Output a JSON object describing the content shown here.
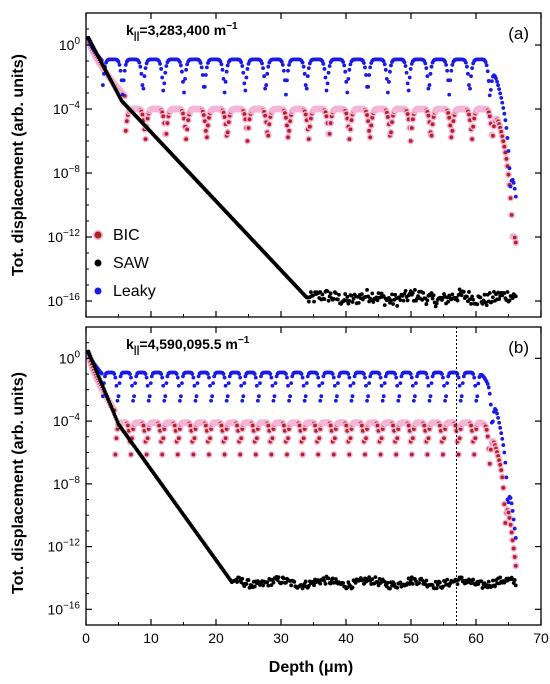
{
  "chart_data": [
    {
      "type": "scatter",
      "panel_label": "(a)",
      "annotation": {
        "main": "k",
        "sub": "||",
        "rest": "=3,283,400 m",
        "sup": "−1"
      },
      "xlim": [
        0,
        70
      ],
      "ylim_log10": [
        -17,
        2
      ],
      "y_scale": "log",
      "ytick_labels": [
        "10^0",
        "10^-4",
        "10^-8",
        "10^-12",
        "10^-16"
      ],
      "ytick_exponents": [
        0,
        -4,
        -8,
        -12,
        -16
      ],
      "legend": {
        "placement": "lower-left"
      },
      "vertical_line": null,
      "series": [
        {
          "name": "BIC",
          "color": "#b22222",
          "halo": "#f4b6d8",
          "profile": {
            "start": 0.3,
            "drop_to": -3.2,
            "drop_until": 6.0,
            "plateau_max": -4.0,
            "period": 3.14,
            "dip_depth": 2.0,
            "tail_start": 62.0,
            "tail_end": 66.0,
            "tail_to": -11.5
          }
        },
        {
          "name": "SAW",
          "color": "#000000",
          "profile": {
            "start": 0.3,
            "knee_x": 5.5,
            "knee_y": -3.5,
            "floor_x": 34.0,
            "floor_y": -15.8,
            "noise": 0.4,
            "end": 66.0
          }
        },
        {
          "name": "Leaky",
          "color": "#1a1ae6",
          "profile": {
            "start": 0.3,
            "drop_to": -1.0,
            "drop_until": 2.5,
            "plateau_max": -0.9,
            "period": 3.14,
            "dip_depth": 2.2,
            "tail_start": 61.0,
            "tail_end": 66.0,
            "tail_to": -9.0
          }
        }
      ]
    },
    {
      "type": "scatter",
      "panel_label": "(b)",
      "annotation": {
        "main": "k",
        "sub": "||",
        "rest": "=4,590,095.5 m",
        "sup": "−1"
      },
      "xlim": [
        0,
        70
      ],
      "ylim_log10": [
        -17,
        2
      ],
      "y_scale": "log",
      "ytick_labels": [
        "10^0",
        "10^-4",
        "10^-8",
        "10^-12",
        "10^-16"
      ],
      "ytick_exponents": [
        0,
        -4,
        -8,
        -12,
        -16
      ],
      "vertical_line": {
        "x": 57,
        "style": "dotted"
      },
      "series": [
        {
          "name": "BIC",
          "color": "#b22222",
          "halo": "#f4b6d8",
          "profile": {
            "start": 0.3,
            "drop_to": -3.4,
            "drop_until": 4.5,
            "plateau_max": -4.1,
            "period": 2.4,
            "dip_depth": 2.2,
            "tail_start": 60.5,
            "tail_end": 66.0,
            "tail_to": -12.8
          }
        },
        {
          "name": "SAW",
          "color": "#000000",
          "profile": {
            "start": 0.3,
            "knee_x": 5.0,
            "knee_y": -4.2,
            "floor_x": 22.5,
            "floor_y": -14.3,
            "noise": 0.25,
            "end": 66.0
          }
        },
        {
          "name": "Leaky",
          "color": "#1a1ae6",
          "profile": {
            "start": 0.3,
            "drop_to": -1.0,
            "drop_until": 2.5,
            "plateau_max": -0.9,
            "period": 2.4,
            "dip_depth": 2.3,
            "tail_start": 60.0,
            "tail_end": 66.0,
            "tail_to": -11.0
          }
        }
      ]
    }
  ],
  "axes": {
    "xlabel": "Depth (μm)",
    "ylabel": "Tot. displacement (arb. units)",
    "xtick_labels": [
      "0",
      "10",
      "20",
      "30",
      "40",
      "50",
      "60",
      "70"
    ],
    "xtick_values": [
      0,
      10,
      20,
      30,
      40,
      50,
      60,
      70
    ]
  },
  "legend_items": [
    "BIC",
    "SAW",
    "Leaky"
  ]
}
